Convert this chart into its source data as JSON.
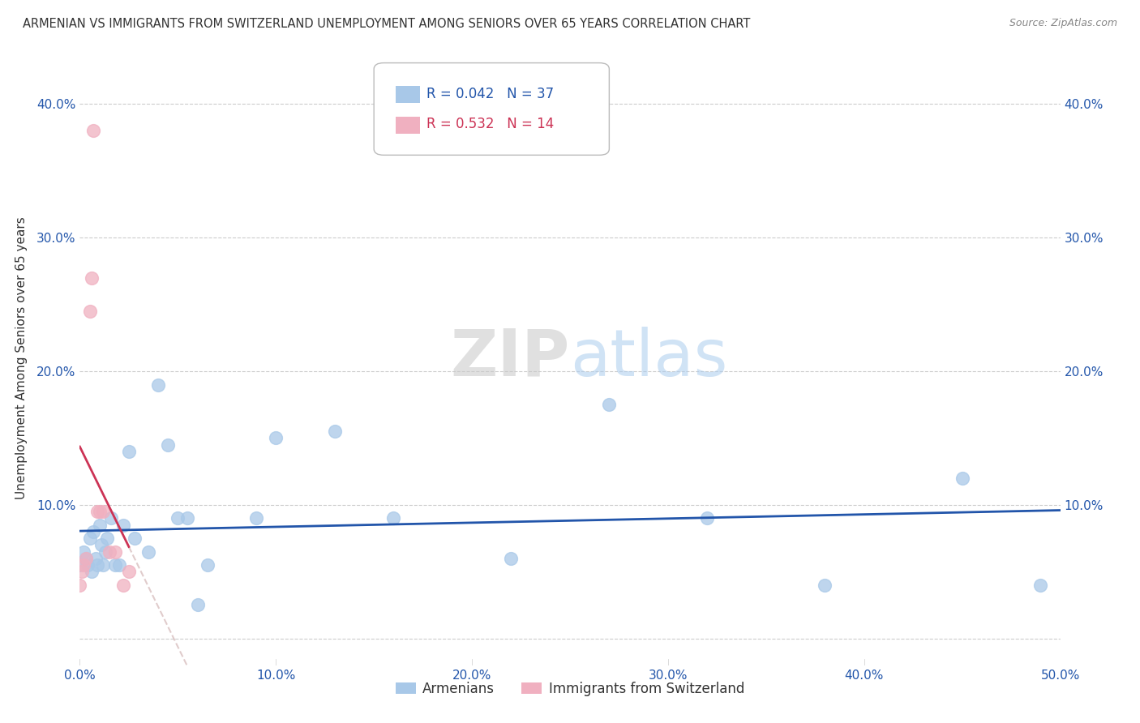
{
  "title": "ARMENIAN VS IMMIGRANTS FROM SWITZERLAND UNEMPLOYMENT AMONG SENIORS OVER 65 YEARS CORRELATION CHART",
  "source": "Source: ZipAtlas.com",
  "ylabel": "Unemployment Among Seniors over 65 years",
  "xlim": [
    0.0,
    0.5
  ],
  "ylim": [
    -0.02,
    0.44
  ],
  "xticks": [
    0.0,
    0.1,
    0.2,
    0.3,
    0.4,
    0.5
  ],
  "yticks": [
    0.0,
    0.1,
    0.2,
    0.3,
    0.4
  ],
  "xtick_labels": [
    "0.0%",
    "10.0%",
    "20.0%",
    "30.0%",
    "40.0%",
    "50.0%"
  ],
  "ytick_labels": [
    "",
    "10.0%",
    "20.0%",
    "30.0%",
    "40.0%"
  ],
  "armenians_x": [
    0.0,
    0.002,
    0.003,
    0.004,
    0.005,
    0.006,
    0.007,
    0.008,
    0.009,
    0.01,
    0.011,
    0.012,
    0.013,
    0.014,
    0.016,
    0.018,
    0.02,
    0.022,
    0.025,
    0.028,
    0.035,
    0.04,
    0.045,
    0.05,
    0.055,
    0.06,
    0.065,
    0.09,
    0.1,
    0.13,
    0.16,
    0.22,
    0.27,
    0.32,
    0.38,
    0.45,
    0.49
  ],
  "armenians_y": [
    0.055,
    0.065,
    0.06,
    0.055,
    0.075,
    0.05,
    0.08,
    0.06,
    0.055,
    0.085,
    0.07,
    0.055,
    0.065,
    0.075,
    0.09,
    0.055,
    0.055,
    0.085,
    0.14,
    0.075,
    0.065,
    0.19,
    0.145,
    0.09,
    0.09,
    0.025,
    0.055,
    0.09,
    0.15,
    0.155,
    0.09,
    0.06,
    0.175,
    0.09,
    0.04,
    0.12,
    0.04
  ],
  "swiss_x": [
    0.0,
    0.001,
    0.002,
    0.003,
    0.005,
    0.006,
    0.007,
    0.009,
    0.01,
    0.012,
    0.015,
    0.018,
    0.022,
    0.025
  ],
  "swiss_y": [
    0.04,
    0.05,
    0.055,
    0.06,
    0.245,
    0.27,
    0.38,
    0.095,
    0.095,
    0.095,
    0.065,
    0.065,
    0.04,
    0.05
  ],
  "armenians_R": 0.042,
  "armenians_N": 37,
  "swiss_R": 0.532,
  "swiss_N": 14,
  "blue_scatter_color": "#a8c8e8",
  "pink_scatter_color": "#f0b0c0",
  "blue_line_color": "#2255aa",
  "pink_line_color": "#cc3355",
  "background_color": "#ffffff",
  "grid_color": "#cccccc",
  "watermark_zip_color": "#d0d0d0",
  "watermark_atlas_color": "#aaccee"
}
